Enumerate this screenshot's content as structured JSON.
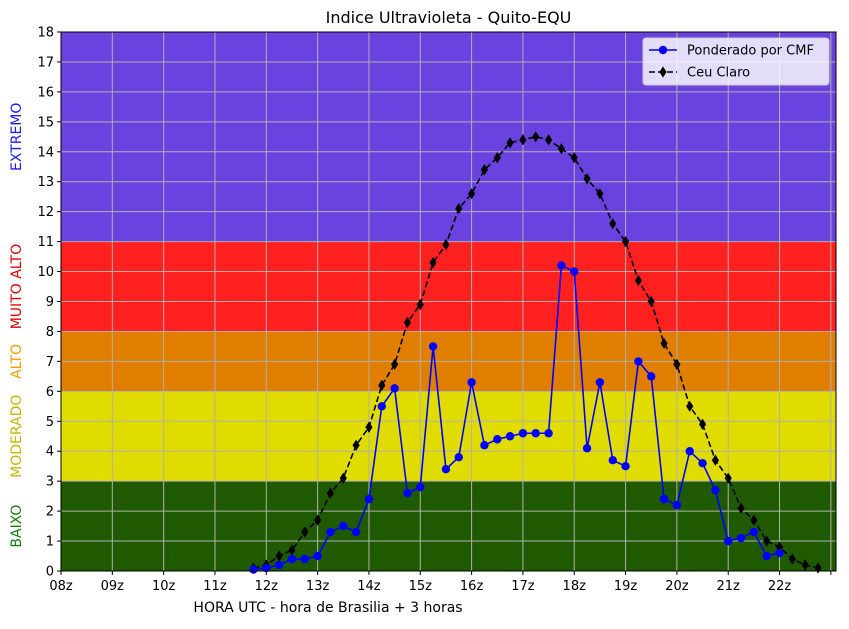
{
  "chart_data": {
    "type": "line",
    "title": "Indice Ultravioleta - Quito-EQU",
    "xlabel": "HORA UTC - hora de Brasilia + 3 horas",
    "ylabel": "",
    "xlim": [
      8,
      23.1
    ],
    "ylim": [
      0,
      18
    ],
    "x_ticks": [
      8,
      9,
      10,
      11,
      12,
      13,
      14,
      15,
      16,
      17,
      18,
      19,
      20,
      21,
      22,
      23
    ],
    "x_tick_labels": [
      "08z",
      "09z",
      "10z",
      "11z",
      "12z",
      "13z",
      "14z",
      "15z",
      "16z",
      "17z",
      "18z",
      "19z",
      "20z",
      "21z",
      "22z",
      ""
    ],
    "y_ticks": [
      0,
      1,
      2,
      3,
      4,
      5,
      6,
      7,
      8,
      9,
      10,
      11,
      12,
      13,
      14,
      15,
      16,
      17,
      18
    ],
    "grid": true,
    "legend_position": "top-right",
    "bands": [
      {
        "name": "BAIXO",
        "from": 0,
        "to": 3,
        "color": "#205a00",
        "label_color": "#1a7a10"
      },
      {
        "name": "MODERADO",
        "from": 3,
        "to": 6,
        "color": "#e0dc00",
        "label_color": "#c8b400"
      },
      {
        "name": "ALTO",
        "from": 6,
        "to": 8,
        "color": "#e07e00",
        "label_color": "#f0a000"
      },
      {
        "name": "MUITO ALTO",
        "from": 8,
        "to": 11,
        "color": "#ff2020",
        "label_color": "#e60000"
      },
      {
        "name": "EXTREMO",
        "from": 11,
        "to": 18,
        "color": "#6a42e0",
        "label_color": "#1a1aff"
      }
    ],
    "series": [
      {
        "name": "Ponderado por CMF",
        "color": "#0000ff",
        "marker": "circle",
        "dashed": false,
        "x": [
          11.75,
          12.0,
          12.25,
          12.5,
          12.75,
          13.0,
          13.25,
          13.5,
          13.75,
          14.0,
          14.25,
          14.5,
          14.75,
          15.0,
          15.25,
          15.5,
          15.75,
          16.0,
          16.25,
          16.5,
          16.75,
          17.0,
          17.25,
          17.5,
          17.75,
          18.0,
          18.25,
          18.5,
          18.75,
          19.0,
          19.25,
          19.5,
          19.75,
          20.0,
          20.25,
          20.5,
          20.75,
          21.0,
          21.25,
          21.5,
          21.75,
          22.0
        ],
        "values": [
          0.05,
          0.1,
          0.2,
          0.4,
          0.4,
          0.5,
          1.3,
          1.5,
          1.3,
          2.4,
          5.5,
          6.1,
          2.6,
          2.8,
          7.5,
          3.4,
          3.8,
          6.3,
          4.2,
          4.4,
          4.5,
          4.6,
          4.6,
          4.6,
          10.2,
          10.0,
          4.1,
          6.3,
          3.7,
          3.5,
          7.0,
          6.5,
          2.4,
          2.2,
          4.0,
          3.6,
          2.7,
          1.0,
          1.1,
          1.3,
          0.5,
          0.6
        ]
      },
      {
        "name": "Ceu Claro",
        "color": "#000000",
        "marker": "diamond",
        "dashed": true,
        "x": [
          11.75,
          12.0,
          12.25,
          12.5,
          12.75,
          13.0,
          13.25,
          13.5,
          13.75,
          14.0,
          14.25,
          14.5,
          14.75,
          15.0,
          15.25,
          15.5,
          15.75,
          16.0,
          16.25,
          16.5,
          16.75,
          17.0,
          17.25,
          17.5,
          17.75,
          18.0,
          18.25,
          18.5,
          18.75,
          19.0,
          19.25,
          19.5,
          19.75,
          20.0,
          20.25,
          20.5,
          20.75,
          21.0,
          21.25,
          21.5,
          21.75,
          22.0,
          22.25,
          22.5,
          22.75
        ],
        "values": [
          0.1,
          0.2,
          0.5,
          0.7,
          1.3,
          1.7,
          2.6,
          3.1,
          4.2,
          4.8,
          6.2,
          6.9,
          8.3,
          8.9,
          10.3,
          10.9,
          12.1,
          12.6,
          13.4,
          13.8,
          14.3,
          14.4,
          14.5,
          14.4,
          14.1,
          13.8,
          13.1,
          12.6,
          11.6,
          11.0,
          9.7,
          9.0,
          7.6,
          6.9,
          5.5,
          4.9,
          3.7,
          3.1,
          2.1,
          1.7,
          1.0,
          0.8,
          0.4,
          0.2,
          0.1
        ]
      }
    ]
  }
}
